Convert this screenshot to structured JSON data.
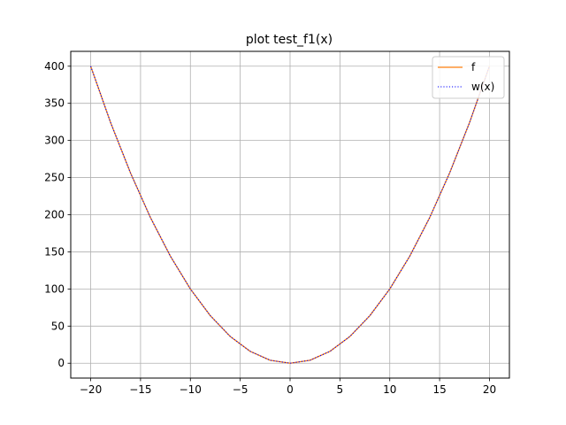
{
  "chart_data": {
    "type": "line",
    "title": "plot test_f1(x)",
    "xlabel": "",
    "ylabel": "",
    "xlim": [
      -22,
      22
    ],
    "ylim": [
      -20,
      420
    ],
    "x_ticks": [
      -20,
      -15,
      -10,
      -5,
      0,
      5,
      10,
      15,
      20
    ],
    "x_tick_labels": [
      "−20",
      "−15",
      "−10",
      "−5",
      "0",
      "5",
      "10",
      "15",
      "20"
    ],
    "y_ticks": [
      0,
      50,
      100,
      150,
      200,
      250,
      300,
      350,
      400
    ],
    "y_tick_labels": [
      "0",
      "50",
      "100",
      "150",
      "200",
      "250",
      "300",
      "350",
      "400"
    ],
    "grid": true,
    "legend_position": "top-right",
    "series": [
      {
        "name": "f",
        "color": "#ff7f0e",
        "style": "solid",
        "x": [
          -20,
          -18,
          -16,
          -14,
          -12,
          -10,
          -8,
          -6,
          -4,
          -2,
          0,
          2,
          4,
          6,
          8,
          10,
          12,
          14,
          16,
          18,
          20
        ],
        "y": [
          400,
          324,
          256,
          196,
          144,
          100,
          64,
          36,
          16,
          4,
          0,
          4,
          16,
          36,
          64,
          100,
          144,
          196,
          256,
          324,
          400
        ]
      },
      {
        "name": "w(x)",
        "color": "#0000ff",
        "style": "dotted",
        "x": [
          -20,
          -18,
          -16,
          -14,
          -12,
          -10,
          -8,
          -6,
          -4,
          -2,
          0,
          2,
          4,
          6,
          8,
          10,
          12,
          14,
          16,
          18,
          20
        ],
        "y": [
          400,
          324,
          256,
          196,
          144,
          100,
          64,
          36,
          16,
          4,
          0,
          4,
          16,
          36,
          64,
          100,
          144,
          196,
          256,
          324,
          400
        ]
      }
    ]
  }
}
